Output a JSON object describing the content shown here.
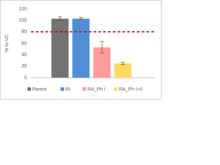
{
  "chart_data": {
    "type": "bar",
    "categories": [
      "Parent",
      "RI",
      "RA_Ph I",
      "RA_Ph I+II"
    ],
    "values": [
      103,
      103,
      53,
      25
    ],
    "errors": [
      3,
      2,
      10,
      2
    ],
    "colors": [
      "#737373",
      "#4f8fd6",
      "#ff9c9c",
      "#ffd966"
    ],
    "ylabel": "% to VC",
    "ylim": [
      0,
      120
    ],
    "yticks": [
      0,
      20,
      40,
      60,
      80,
      100,
      120
    ],
    "grid": false,
    "reference_line": {
      "value": 80,
      "color": "#c00000"
    },
    "legend": "bottom"
  }
}
